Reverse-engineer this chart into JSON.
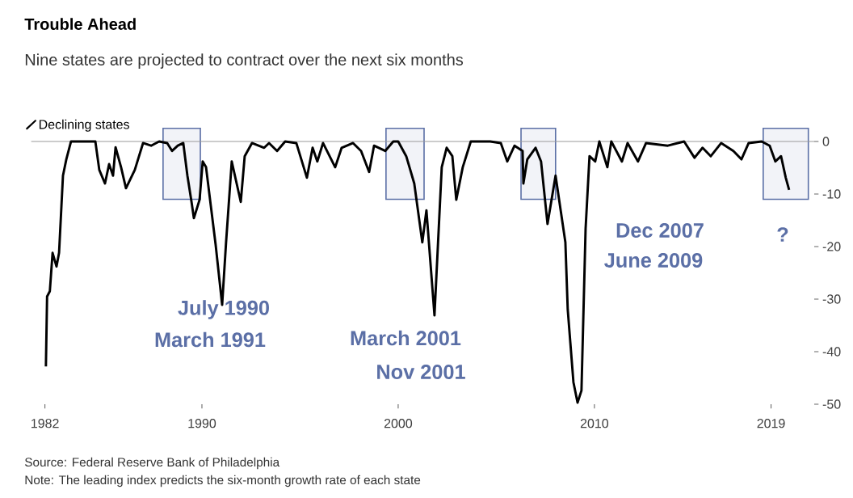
{
  "chart_data": {
    "type": "line",
    "title": "Trouble Ahead",
    "subtitle": "Nine states are projected to contract over the next six months",
    "x": [
      1982.05,
      1982.11,
      1982.25,
      1982.39,
      1982.59,
      1982.72,
      1982.92,
      1983.09,
      1983.33,
      1984.57,
      1984.77,
      1985.06,
      1985.27,
      1985.47,
      1985.6,
      1985.88,
      1986.13,
      1986.58,
      1987.0,
      1987.41,
      1987.82,
      1988.23,
      1988.48,
      1988.77,
      1989.05,
      1989.26,
      1989.47,
      1989.59,
      1989.88,
      1990.04,
      1990.21,
      1990.7,
      1991.03,
      1991.23,
      1991.52,
      1991.77,
      1991.98,
      1992.18,
      1992.55,
      1993.17,
      1993.42,
      1993.83,
      1994.24,
      1994.81,
      1995.35,
      1995.64,
      1995.88,
      1996.17,
      1996.79,
      1997.12,
      1997.7,
      1998.11,
      1998.52,
      1998.77,
      1999.34,
      1999.75,
      2000.0,
      2000.41,
      2000.82,
      2001.23,
      2001.44,
      2001.85,
      2002.22,
      2002.47,
      2002.76,
      2002.96,
      2003.29,
      2003.7,
      2004.69,
      2005.23,
      2005.56,
      2005.93,
      2006.34,
      2006.38,
      2006.58,
      2007.0,
      2007.28,
      2007.61,
      2008.02,
      2008.52,
      2008.64,
      2008.93,
      2009.14,
      2009.34,
      2009.55,
      2009.75,
      2010.04,
      2010.25,
      2010.66,
      2010.86,
      2011.4,
      2011.69,
      2012.22,
      2012.63,
      2013.74,
      2014.57,
      2015.1,
      2015.51,
      2015.93,
      2016.46,
      2017.08,
      2017.49,
      2017.86,
      2018.52,
      2018.93,
      2019.22,
      2019.51,
      2019.75,
      2019.92
    ],
    "series": [
      {
        "name": "Declining states",
        "color": "#000000",
        "values": [
          -42.8,
          -29.5,
          -28.5,
          -21.2,
          -23.8,
          -21.2,
          -6.5,
          -3.4,
          0,
          0,
          -5.4,
          -8,
          -4.3,
          -6.5,
          -1.1,
          -4.9,
          -8.9,
          -5.4,
          -0.3,
          -0.8,
          0,
          -0.3,
          -1.8,
          -0.8,
          -0.3,
          -6.5,
          -11.5,
          -14.6,
          -11.1,
          -3.8,
          -4.9,
          -19.7,
          -31.1,
          -19.2,
          -3.8,
          -8,
          -11.5,
          -2.8,
          -0.3,
          -1.2,
          -0.3,
          -1.8,
          0,
          -0.3,
          -6.9,
          -1.2,
          -3.8,
          -0.3,
          -4.9,
          -1.2,
          -0.3,
          -1.8,
          -5.8,
          -0.8,
          -1.8,
          0,
          0,
          -2.8,
          -8,
          -19.2,
          -13.1,
          -33.1,
          -4.9,
          -1.2,
          -2.8,
          -11.1,
          -4.9,
          0,
          0,
          -0.3,
          -3.8,
          -0.8,
          -1.8,
          -8,
          -3.4,
          -1.2,
          -3.8,
          -15.7,
          -6.5,
          -19.2,
          -32,
          -45.8,
          -49.7,
          -47.4,
          -16.6,
          -2.8,
          -3.8,
          0,
          -4.9,
          0,
          -3.8,
          -0.3,
          -3.8,
          -0.3,
          -0.8,
          0,
          -3.1,
          -1.2,
          -2.8,
          -0.3,
          -1.8,
          -3.4,
          -0.3,
          0,
          -0.8,
          -3.8,
          -2.8,
          -6.9,
          -9.2
        ]
      }
    ],
    "xlim": [
      1981.3,
      2021.2
    ],
    "ylim": [
      -50,
      0
    ],
    "xticks": [
      1982,
      1990,
      2000,
      2010,
      2019
    ],
    "yticks": [
      0,
      -10,
      -20,
      -30,
      -40,
      -50
    ],
    "ref_lines": [
      {
        "axis": "y",
        "value": 0,
        "color": "#999999"
      }
    ],
    "bands": [
      {
        "axis": "x",
        "from": 1988.02,
        "to": 1989.92,
        "color": "#5b6fa6"
      },
      {
        "axis": "x",
        "from": 1999.38,
        "to": 2001.32,
        "color": "#5b6fa6"
      },
      {
        "axis": "x",
        "from": 2006.26,
        "to": 2008.02,
        "color": "#5b6fa6"
      },
      {
        "axis": "x",
        "from": 2018.6,
        "to": 2020.9,
        "color": "#5b6fa6"
      }
    ],
    "legend": "top left",
    "line_style": "solid",
    "annotations": [
      "July 1990",
      "March 1991",
      "March 2001",
      "Nov 2001",
      "Dec 2007",
      "June 2009",
      "?",
      "Source: Federal Reserve Bank of Philadelphia",
      "Note: The leading index predicts the six-month growth rate of each state"
    ]
  }
}
